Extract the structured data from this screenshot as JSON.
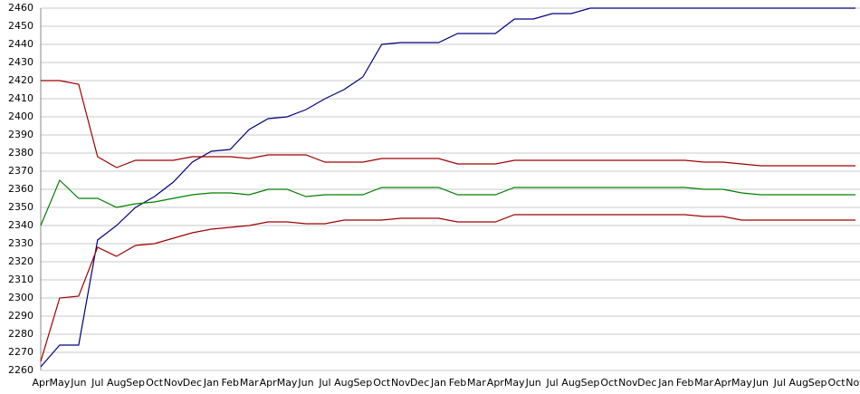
{
  "chart_data": {
    "type": "line",
    "categories": [
      "Apr",
      "May",
      "Jun",
      "Jul",
      "Aug",
      "Sep",
      "Oct",
      "Nov",
      "Dec",
      "Jan",
      "Feb",
      "Mar",
      "Apr",
      "May",
      "Jun",
      "Jul",
      "Aug",
      "Sep",
      "Oct",
      "Nov",
      "Dec",
      "Jan",
      "Feb",
      "Mar",
      "Apr",
      "May",
      "Jun",
      "Jul",
      "Aug",
      "Sep",
      "Oct",
      "Nov",
      "Dec",
      "Jan",
      "Feb",
      "Mar",
      "Apr",
      "May",
      "Jun",
      "Jul",
      "Aug",
      "Sep",
      "Oct",
      "Nov"
    ],
    "series": [
      {
        "color": "#000080",
        "values": [
          2262,
          2274,
          2274,
          2332,
          2340,
          2350,
          2356,
          2364,
          2375,
          2381,
          2382,
          2393,
          2399,
          2400,
          2404,
          2410,
          2415,
          2422,
          2440,
          2441,
          2441,
          2441,
          2446,
          2446,
          2446,
          2454,
          2454,
          2457,
          2457,
          2460,
          2460,
          2460,
          2460,
          2460,
          2460,
          2460,
          2460,
          2460,
          2460,
          2460,
          2460,
          2460,
          2460,
          2460
        ]
      },
      {
        "color": "#a00000",
        "values": [
          2420,
          2420,
          2418,
          2378,
          2372,
          2376,
          2376,
          2376,
          2378,
          2378,
          2378,
          2377,
          2379,
          2379,
          2379,
          2375,
          2375,
          2375,
          2377,
          2377,
          2377,
          2377,
          2374,
          2374,
          2374,
          2376,
          2376,
          2376,
          2376,
          2376,
          2376,
          2376,
          2376,
          2376,
          2376,
          2375,
          2375,
          2374,
          2373,
          2373,
          2373,
          2373,
          2373,
          2373
        ]
      },
      {
        "color": "#008000",
        "values": [
          2340,
          2365,
          2355,
          2355,
          2350,
          2352,
          2353,
          2355,
          2357,
          2358,
          2358,
          2357,
          2360,
          2360,
          2356,
          2357,
          2357,
          2357,
          2361,
          2361,
          2361,
          2361,
          2357,
          2357,
          2357,
          2361,
          2361,
          2361,
          2361,
          2361,
          2361,
          2361,
          2361,
          2361,
          2361,
          2360,
          2360,
          2358,
          2357,
          2357,
          2357,
          2357,
          2357,
          2357
        ]
      },
      {
        "color": "#a00000",
        "values": [
          2265,
          2300,
          2301,
          2328,
          2323,
          2329,
          2330,
          2333,
          2336,
          2338,
          2339,
          2340,
          2342,
          2342,
          2341,
          2341,
          2343,
          2343,
          2343,
          2344,
          2344,
          2344,
          2342,
          2342,
          2342,
          2346,
          2346,
          2346,
          2346,
          2346,
          2346,
          2346,
          2346,
          2346,
          2346,
          2345,
          2345,
          2343,
          2343,
          2343,
          2343,
          2343,
          2343,
          2343
        ]
      }
    ],
    "ylim": [
      2260,
      2460
    ],
    "yticks": [
      2260,
      2270,
      2280,
      2290,
      2300,
      2310,
      2320,
      2330,
      2340,
      2350,
      2360,
      2370,
      2380,
      2390,
      2400,
      2410,
      2420,
      2430,
      2440,
      2450,
      2460
    ],
    "grid": true
  }
}
